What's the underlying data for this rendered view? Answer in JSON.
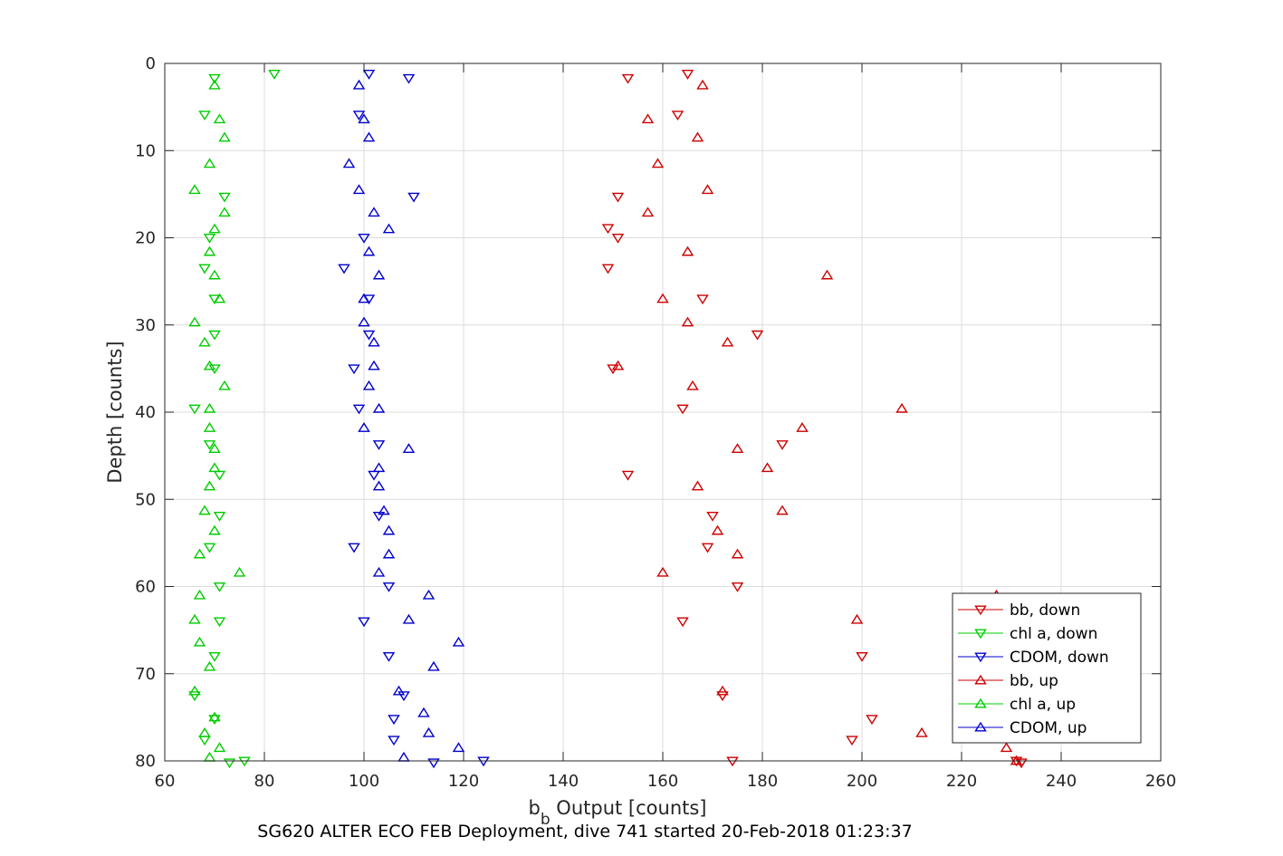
{
  "chart_data": {
    "type": "scatter",
    "title": "",
    "caption": "SG620 ALTER ECO FEB Deployment, dive 741 started 20-Feb-2018 01:23:37",
    "xlabel": "b",
    "xlabel_subscript": "b",
    "xlabel_rest": " Output [counts]",
    "ylabel": "Depth [counts]",
    "xlim": [
      60,
      260
    ],
    "ylim": [
      0,
      80
    ],
    "y_reversed": true,
    "grid": true,
    "legend_position": "bottom-right",
    "xticks": [
      "60",
      "80",
      "100",
      "120",
      "140",
      "160",
      "180",
      "200",
      "220",
      "240",
      "260"
    ],
    "yticks": [
      "0",
      "10",
      "20",
      "30",
      "40",
      "50",
      "60",
      "70",
      "80"
    ],
    "series": [
      {
        "name": "bb, down",
        "color": "#cc0000",
        "marker": "triangle-down",
        "points": [
          [
            165,
            1.2
          ],
          [
            153,
            1.7
          ],
          [
            163,
            5.9
          ],
          [
            151,
            15.3
          ],
          [
            149,
            18.9
          ],
          [
            151,
            20
          ],
          [
            149,
            23.5
          ],
          [
            168,
            27
          ],
          [
            179,
            31.1
          ],
          [
            150,
            35
          ],
          [
            164,
            39.6
          ],
          [
            184,
            43.7
          ],
          [
            153,
            47.2
          ],
          [
            170,
            51.9
          ],
          [
            169,
            55.5
          ],
          [
            175,
            60
          ],
          [
            164,
            64
          ],
          [
            200,
            68
          ],
          [
            172,
            72.5
          ],
          [
            202,
            75.2
          ],
          [
            198,
            77.6
          ],
          [
            231,
            80
          ],
          [
            232,
            80.2
          ],
          [
            174,
            80
          ]
        ]
      },
      {
        "name": "chl a, down",
        "color": "#00cc00",
        "marker": "triangle-down",
        "points": [
          [
            82,
            1.2
          ],
          [
            70,
            1.7
          ],
          [
            68,
            5.9
          ],
          [
            72,
            15.3
          ],
          [
            69,
            20
          ],
          [
            68,
            23.5
          ],
          [
            70,
            27
          ],
          [
            70,
            31.1
          ],
          [
            70,
            35
          ],
          [
            66,
            39.6
          ],
          [
            69,
            43.7
          ],
          [
            71,
            47.2
          ],
          [
            71,
            51.9
          ],
          [
            69,
            55.5
          ],
          [
            71,
            60
          ],
          [
            71,
            64
          ],
          [
            70,
            68
          ],
          [
            66,
            72.5
          ],
          [
            70,
            75.2
          ],
          [
            68,
            77.6
          ],
          [
            73,
            80.2
          ],
          [
            76,
            80
          ]
        ]
      },
      {
        "name": "CDOM, down",
        "color": "#0000cc",
        "marker": "triangle-down",
        "points": [
          [
            101,
            1.2
          ],
          [
            109,
            1.7
          ],
          [
            99,
            5.9
          ],
          [
            110,
            15.3
          ],
          [
            100,
            20
          ],
          [
            96,
            23.5
          ],
          [
            101,
            27
          ],
          [
            101,
            31.1
          ],
          [
            98,
            35
          ],
          [
            99,
            39.6
          ],
          [
            103,
            43.7
          ],
          [
            102,
            47.2
          ],
          [
            103,
            51.9
          ],
          [
            98,
            55.5
          ],
          [
            105,
            60
          ],
          [
            100,
            64
          ],
          [
            105,
            68
          ],
          [
            108,
            72.5
          ],
          [
            106,
            75.2
          ],
          [
            106,
            77.6
          ],
          [
            114,
            80.2
          ],
          [
            124,
            80
          ]
        ]
      },
      {
        "name": "bb, up",
        "color": "#cc0000",
        "marker": "triangle-up",
        "points": [
          [
            168,
            2.5
          ],
          [
            157,
            6.4
          ],
          [
            167,
            8.5
          ],
          [
            159,
            11.5
          ],
          [
            169,
            14.5
          ],
          [
            157,
            17.1
          ],
          [
            165,
            21.6
          ],
          [
            193,
            24.3
          ],
          [
            160,
            27
          ],
          [
            165,
            29.7
          ],
          [
            173,
            32
          ],
          [
            151,
            34.7
          ],
          [
            166,
            37
          ],
          [
            208,
            39.6
          ],
          [
            188,
            41.8
          ],
          [
            175,
            44.2
          ],
          [
            181,
            46.4
          ],
          [
            167,
            48.5
          ],
          [
            184,
            51.3
          ],
          [
            171,
            53.6
          ],
          [
            175,
            56.3
          ],
          [
            160,
            58.4
          ],
          [
            227,
            61
          ],
          [
            199,
            63.8
          ],
          [
            172,
            72
          ],
          [
            212,
            76.8
          ],
          [
            229,
            78.5
          ],
          [
            231,
            80
          ]
        ]
      },
      {
        "name": "chl a, up",
        "color": "#00cc00",
        "marker": "triangle-up",
        "points": [
          [
            70,
            2.5
          ],
          [
            71,
            6.4
          ],
          [
            72,
            8.5
          ],
          [
            69,
            11.5
          ],
          [
            66,
            14.5
          ],
          [
            72,
            17.1
          ],
          [
            70,
            19
          ],
          [
            69,
            21.6
          ],
          [
            70,
            24.3
          ],
          [
            71,
            27
          ],
          [
            66,
            29.7
          ],
          [
            68,
            32
          ],
          [
            69,
            34.7
          ],
          [
            72,
            37
          ],
          [
            69,
            39.6
          ],
          [
            69,
            41.8
          ],
          [
            70,
            44.2
          ],
          [
            70,
            46.4
          ],
          [
            69,
            48.5
          ],
          [
            68,
            51.3
          ],
          [
            70,
            53.6
          ],
          [
            67,
            56.3
          ],
          [
            75,
            58.4
          ],
          [
            67,
            61
          ],
          [
            66,
            63.8
          ],
          [
            67,
            66.4
          ],
          [
            69,
            69.2
          ],
          [
            66,
            72
          ],
          [
            70,
            75
          ],
          [
            68,
            76.8
          ],
          [
            71,
            78.5
          ],
          [
            69,
            79.6
          ]
        ]
      },
      {
        "name": "CDOM, up",
        "color": "#0000cc",
        "marker": "triangle-up",
        "points": [
          [
            99,
            2.5
          ],
          [
            100,
            6.4
          ],
          [
            101,
            8.5
          ],
          [
            97,
            11.5
          ],
          [
            99,
            14.5
          ],
          [
            102,
            17.1
          ],
          [
            105,
            19
          ],
          [
            101,
            21.6
          ],
          [
            103,
            24.3
          ],
          [
            100,
            27
          ],
          [
            100,
            29.7
          ],
          [
            102,
            32
          ],
          [
            102,
            34.7
          ],
          [
            101,
            37
          ],
          [
            103,
            39.6
          ],
          [
            100,
            41.8
          ],
          [
            109,
            44.2
          ],
          [
            103,
            46.4
          ],
          [
            103,
            48.5
          ],
          [
            104,
            51.3
          ],
          [
            105,
            53.6
          ],
          [
            105,
            56.3
          ],
          [
            103,
            58.4
          ],
          [
            113,
            61
          ],
          [
            109,
            63.8
          ],
          [
            119,
            66.4
          ],
          [
            114,
            69.2
          ],
          [
            107,
            72
          ],
          [
            112,
            74.5
          ],
          [
            113,
            76.8
          ],
          [
            119,
            78.5
          ],
          [
            108,
            79.6
          ]
        ]
      }
    ]
  }
}
